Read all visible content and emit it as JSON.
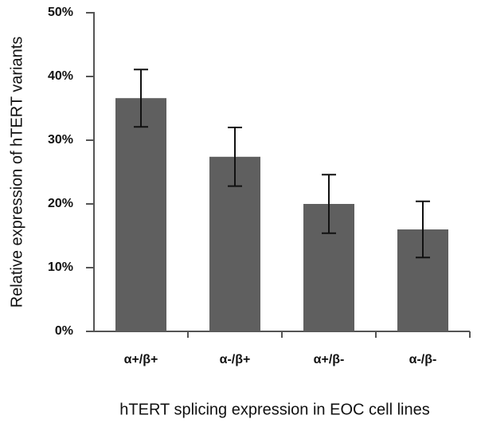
{
  "chart_data": {
    "type": "bar",
    "x_label": "hTERT splicing expression in EOC cell lines",
    "y_label": "Relative expression  of hTERT  variants",
    "categories": [
      "α+/β+",
      "α-/β+",
      "α+/β-",
      "α-/β-"
    ],
    "values": [
      36.6,
      27.4,
      20,
      16
    ],
    "errors": [
      4.5,
      4.6,
      4.6,
      4.4
    ],
    "color": "#5f5f5f",
    "ylim": [
      0,
      50
    ],
    "yticks": [
      {
        "value": 0,
        "label": "0%"
      },
      {
        "value": 10,
        "label": "10%"
      },
      {
        "value": 20,
        "label": "20%"
      },
      {
        "value": 30,
        "label": "30%"
      },
      {
        "value": 40,
        "label": "40%"
      },
      {
        "value": 50,
        "label": "50%"
      }
    ],
    "grid": false
  }
}
